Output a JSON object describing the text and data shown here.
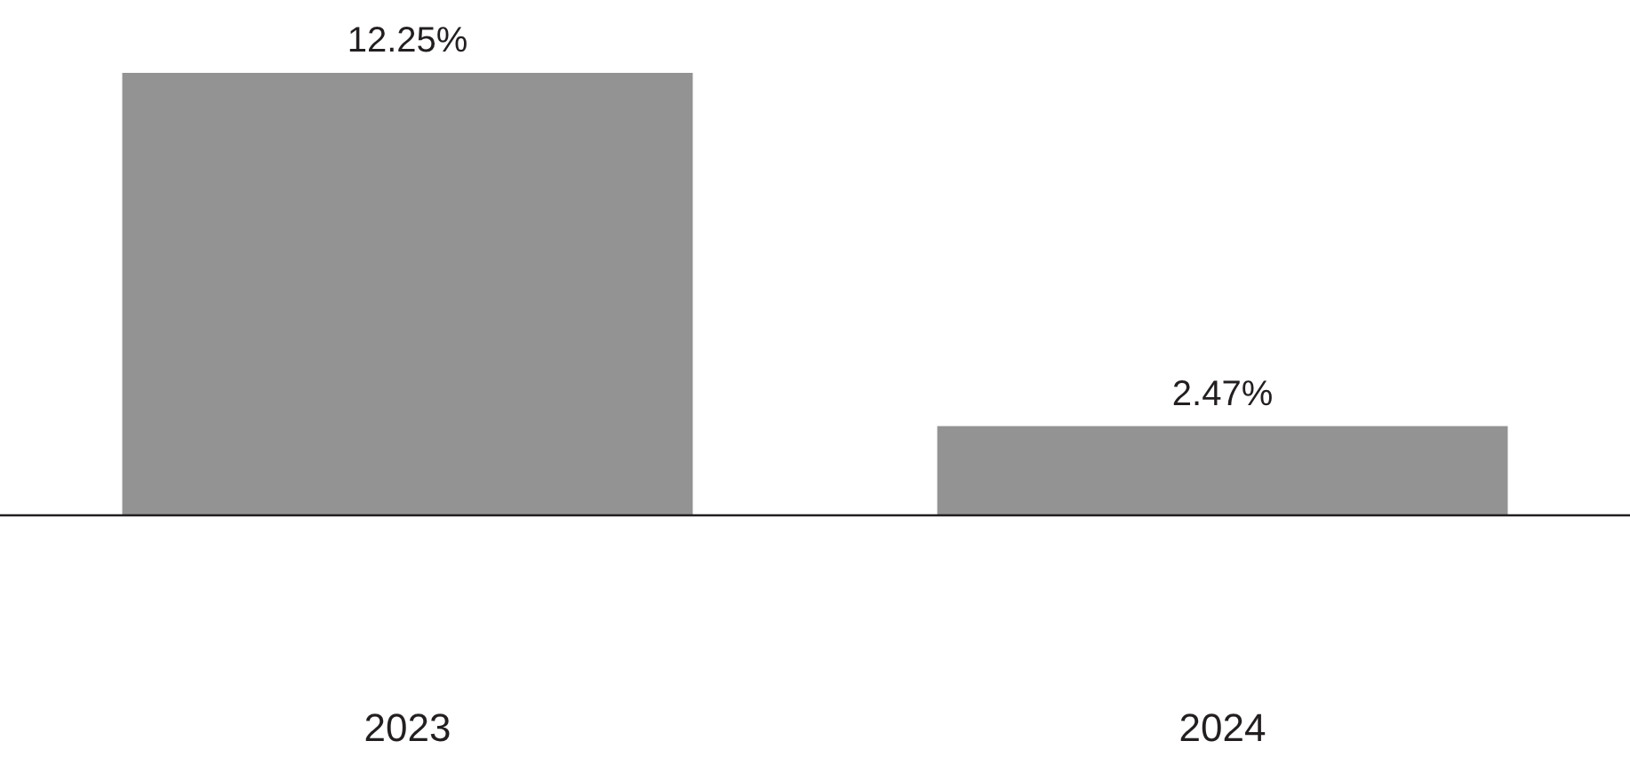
{
  "chart_data": {
    "type": "bar",
    "categories": [
      "2023",
      "2024"
    ],
    "values": [
      12.25,
      2.47
    ],
    "color": "#939393",
    "value_labels": [
      "12.25%",
      "2.47%"
    ]
  }
}
